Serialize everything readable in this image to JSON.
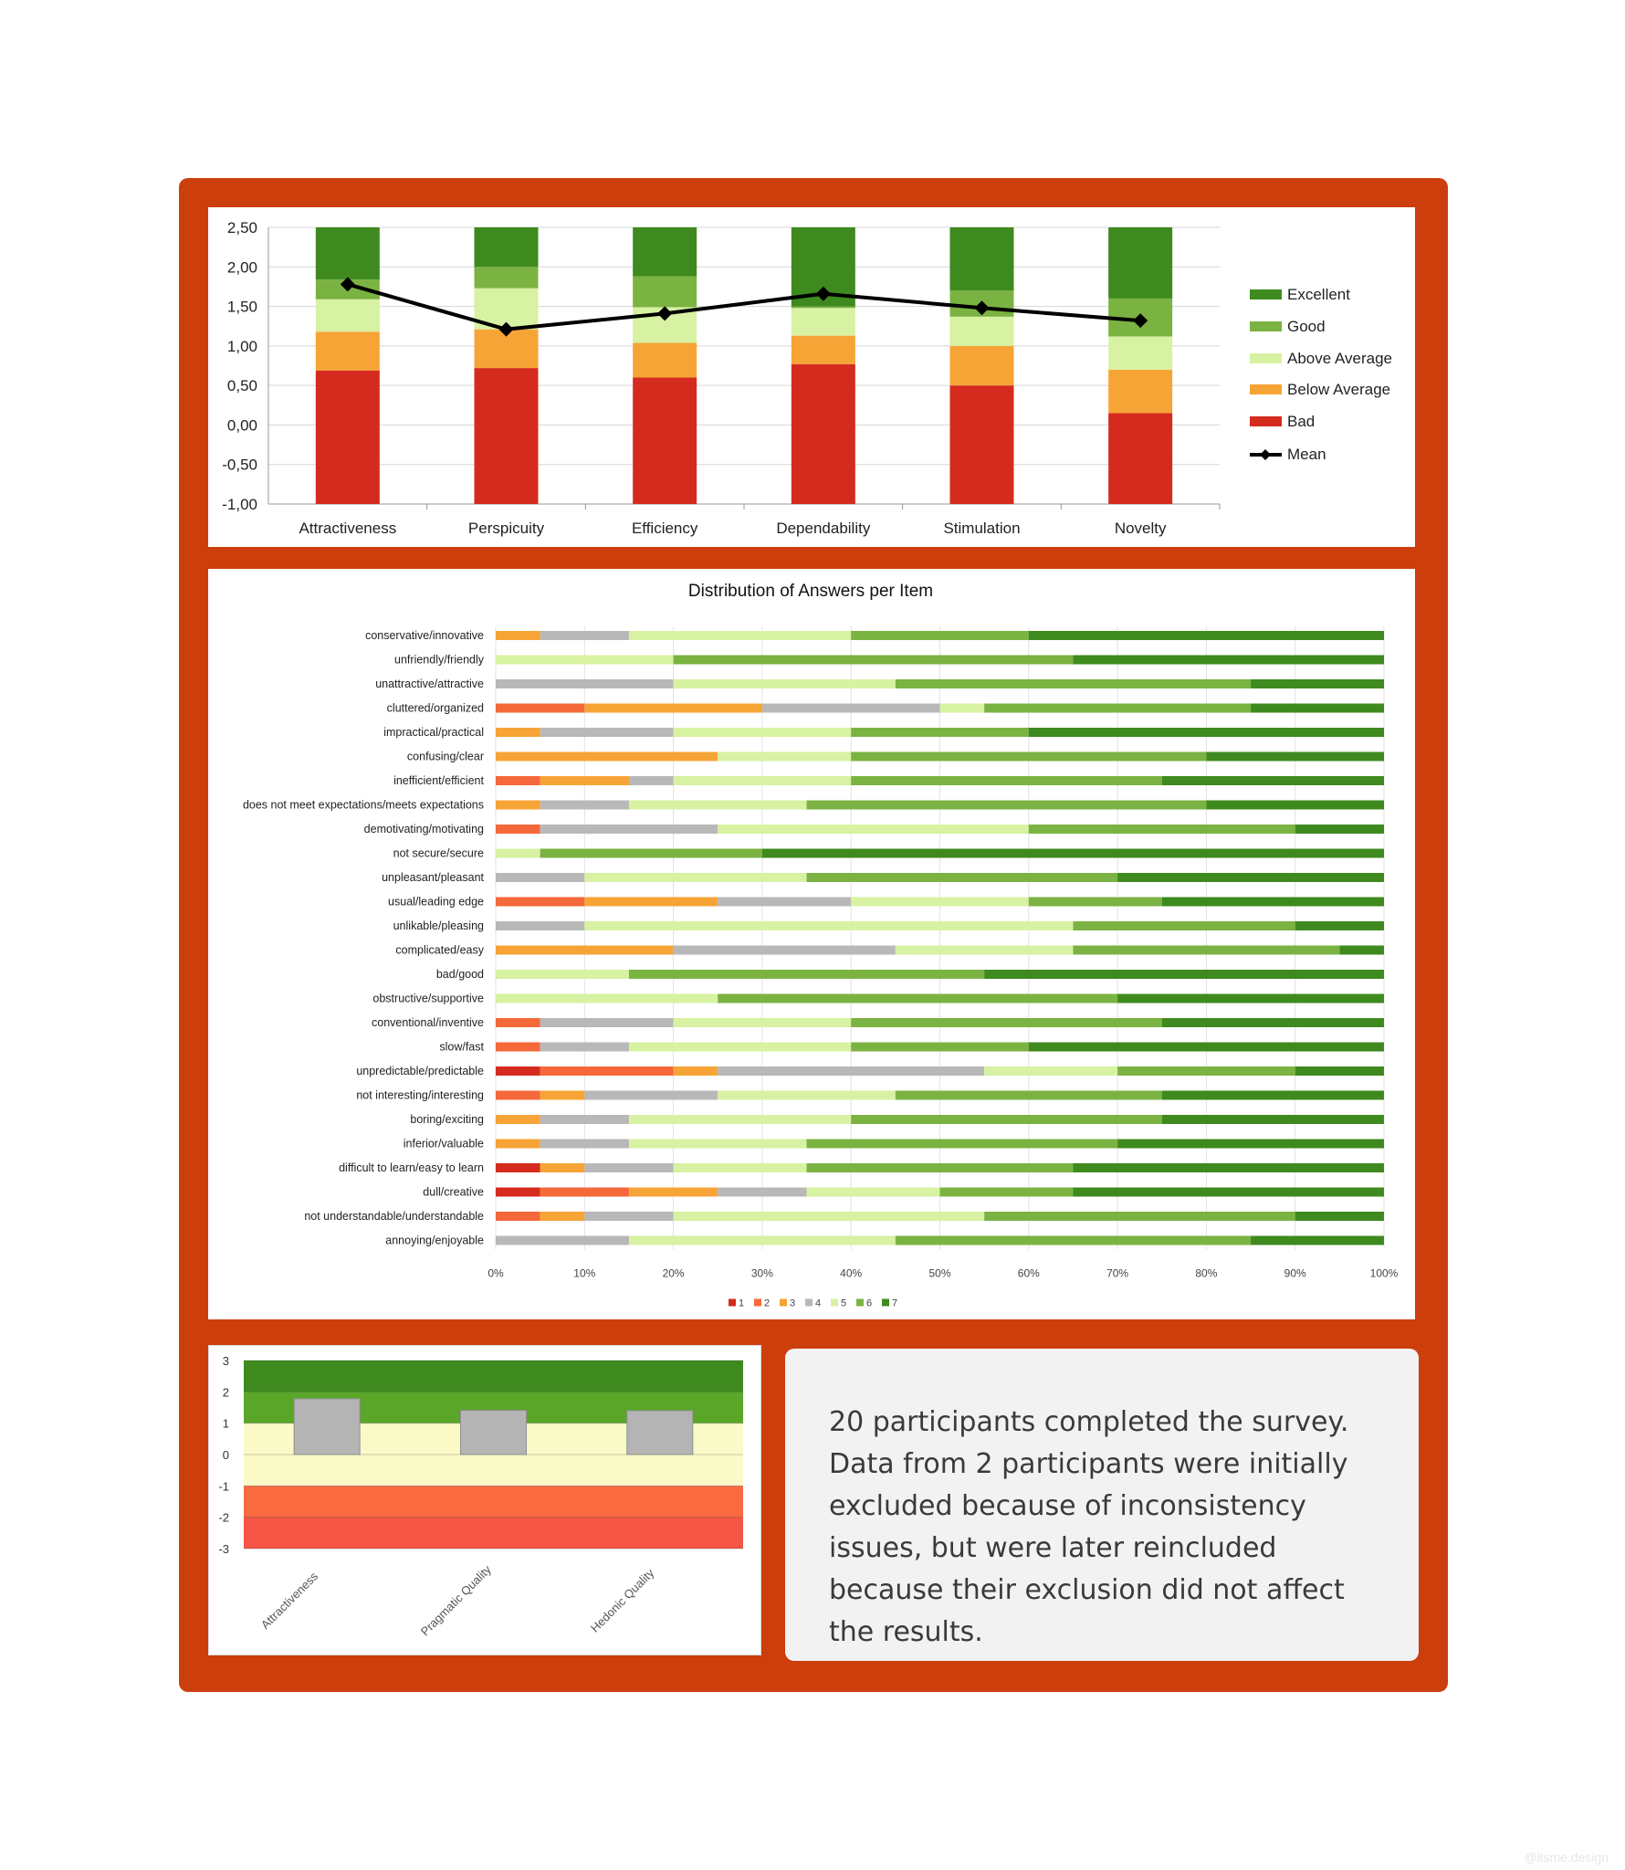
{
  "colors": {
    "frame": "#cc3f0c",
    "excellent": "#3e8a1e",
    "good": "#7bb342",
    "above_average": "#d7f2a2",
    "below_average": "#f7a436",
    "bad": "#d42b1e",
    "mean": "#000000",
    "answers": [
      "#d42b1e",
      "#f5683a",
      "#f7a436",
      "#b8b8b8",
      "#d7f2a2",
      "#7bb342",
      "#3e8a1e"
    ]
  },
  "note": {
    "text": "20 participants completed the survey. Data from 2 participants were initially excluded because of inconsistency issues, but were later reincluded because their exclusion did not affect the results."
  },
  "watermark": "@itsme.design",
  "chart_data": [
    {
      "type": "bar",
      "subtype": "stacked benchmark with mean line",
      "title": "",
      "categories": [
        "Attractiveness",
        "Perspicuity",
        "Efficiency",
        "Dependability",
        "Stimulation",
        "Novelty"
      ],
      "ylim": [
        -1.0,
        2.5
      ],
      "yticks": [
        "2,50",
        "2,00",
        "1,50",
        "1,00",
        "0,50",
        "0,00",
        "-0,50",
        "-1,00"
      ],
      "ytick_values": [
        2.5,
        2.0,
        1.5,
        1.0,
        0.5,
        0.0,
        -0.5,
        -1.0
      ],
      "grid": true,
      "legend_position": "right",
      "series": [
        {
          "name": "Bad",
          "upper_bounds": [
            0.69,
            0.72,
            0.6,
            0.77,
            0.5,
            0.15
          ]
        },
        {
          "name": "Below Average",
          "upper_bounds": [
            1.18,
            1.21,
            1.04,
            1.13,
            1.0,
            0.7
          ]
        },
        {
          "name": "Above Average",
          "upper_bounds": [
            1.59,
            1.73,
            1.49,
            1.48,
            1.37,
            1.12
          ]
        },
        {
          "name": "Good",
          "upper_bounds": [
            1.84,
            2.0,
            1.88,
            1.5,
            1.7,
            1.6
          ]
        },
        {
          "name": "Excellent",
          "upper_bounds": [
            2.5,
            2.5,
            2.5,
            2.5,
            2.5,
            2.5
          ]
        },
        {
          "name": "Mean",
          "values": [
            1.78,
            1.21,
            1.41,
            1.66,
            1.48,
            1.32
          ]
        }
      ]
    },
    {
      "type": "bar",
      "subtype": "100% stacked horizontal",
      "title": "Distribution of Answers per Item",
      "categories": [
        "conservative/innovative",
        "unfriendly/friendly",
        "unattractive/attractive",
        "cluttered/organized",
        "impractical/practical",
        "confusing/clear",
        "inefficient/efficient",
        "does not meet expectations/meets expectations",
        "demotivating/motivating",
        "not secure/secure",
        "unpleasant/pleasant",
        "usual/leading edge",
        "unlikable/pleasing",
        "complicated/easy",
        "bad/good",
        "obstructive/supportive",
        "conventional/inventive",
        "slow/fast",
        "unpredictable/predictable",
        "not interesting/interesting",
        "boring/exciting",
        "inferior/valuable",
        "difficult to learn/easy to learn",
        "dull/creative",
        "not understandable/understandable",
        "annoying/enjoyable"
      ],
      "series_names": [
        "1",
        "2",
        "3",
        "4",
        "5",
        "6",
        "7"
      ],
      "xticks": [
        "0%",
        "10%",
        "20%",
        "30%",
        "40%",
        "50%",
        "60%",
        "70%",
        "80%",
        "90%",
        "100%"
      ],
      "legend_position": "bottom",
      "values_percent": [
        [
          0,
          0,
          5,
          10,
          25,
          20,
          40
        ],
        [
          0,
          0,
          0,
          0,
          20,
          45,
          35
        ],
        [
          0,
          0,
          0,
          20,
          25,
          40,
          15
        ],
        [
          0,
          10,
          20,
          20,
          5,
          30,
          15
        ],
        [
          0,
          0,
          5,
          15,
          20,
          20,
          40
        ],
        [
          0,
          0,
          25,
          0,
          15,
          40,
          20
        ],
        [
          0,
          5,
          10,
          5,
          20,
          35,
          25
        ],
        [
          0,
          0,
          5,
          10,
          20,
          45,
          20
        ],
        [
          0,
          5,
          0,
          20,
          35,
          30,
          10
        ],
        [
          0,
          0,
          0,
          0,
          5,
          25,
          70
        ],
        [
          0,
          0,
          0,
          10,
          25,
          35,
          30
        ],
        [
          0,
          10,
          15,
          15,
          20,
          15,
          25
        ],
        [
          0,
          0,
          0,
          10,
          55,
          25,
          10
        ],
        [
          0,
          0,
          20,
          25,
          20,
          30,
          5
        ],
        [
          0,
          0,
          0,
          0,
          15,
          40,
          45
        ],
        [
          0,
          0,
          0,
          0,
          25,
          45,
          30
        ],
        [
          0,
          5,
          0,
          15,
          20,
          35,
          25
        ],
        [
          0,
          5,
          0,
          10,
          25,
          20,
          40
        ],
        [
          5,
          15,
          5,
          30,
          15,
          20,
          10
        ],
        [
          0,
          5,
          5,
          15,
          20,
          30,
          25
        ],
        [
          0,
          0,
          5,
          10,
          25,
          35,
          25
        ],
        [
          0,
          0,
          5,
          10,
          20,
          35,
          30
        ],
        [
          5,
          0,
          5,
          10,
          15,
          30,
          35
        ],
        [
          5,
          10,
          10,
          10,
          15,
          15,
          35
        ],
        [
          0,
          5,
          5,
          10,
          35,
          35,
          10
        ],
        [
          0,
          0,
          0,
          15,
          30,
          40,
          15
        ]
      ]
    },
    {
      "type": "bar",
      "title": "",
      "categories": [
        "Attractiveness",
        "Pragmatic Quality",
        "Hedonic Quality"
      ],
      "values": [
        1.78,
        1.41,
        1.4
      ],
      "ylim": [
        -3,
        3
      ],
      "yticks": [
        "3",
        "2",
        "1",
        "0",
        "-1",
        "-2",
        "-3"
      ],
      "ytick_values": [
        3,
        2,
        1,
        0,
        -1,
        -2,
        -3
      ],
      "bands": [
        {
          "from": 2,
          "to": 3,
          "color": "#3e8a1e"
        },
        {
          "from": 1,
          "to": 2,
          "color": "#5aa628"
        },
        {
          "from": 0,
          "to": 1,
          "color": "#fafac8"
        },
        {
          "from": -1,
          "to": 0,
          "color": "#fafac8"
        },
        {
          "from": -2,
          "to": -1,
          "color": "#f96a40"
        },
        {
          "from": -3,
          "to": -2,
          "color": "#f45545"
        }
      ]
    }
  ]
}
